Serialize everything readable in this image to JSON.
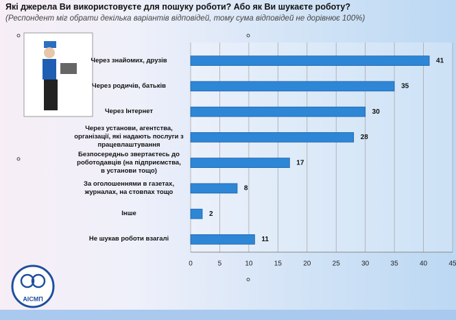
{
  "chart_data": {
    "type": "barh",
    "title": "Які джерела Ви використовуєте для пошуку роботи? Або як Ви шукаєте роботу?",
    "subtitle": "(Респондент міг обрати декілька варіантів відповідей, тому сума відповідей не дорівнює 100%)",
    "categories": [
      "Через знайомих, друзів",
      "Через родичів, батьків",
      "Через Інтернет",
      "Через установи, агентства, організації, які надають послуги з працевлаштування",
      "Безпосередньо звертаєтесь до роботодавців (на підприємства, в установи тощо)",
      "За оголошеннями в газетах, журналах, на стовпах тощо",
      "Інше",
      "Не шукав роботи взагалі"
    ],
    "values": [
      41,
      35,
      30,
      28,
      17,
      8,
      2,
      11
    ],
    "color": "#2e86d6",
    "xlim": [
      0,
      45
    ],
    "xticks": [
      0,
      5,
      10,
      15,
      20,
      25,
      30,
      35,
      40,
      45
    ],
    "grid": true
  },
  "logo": "АІСМП"
}
